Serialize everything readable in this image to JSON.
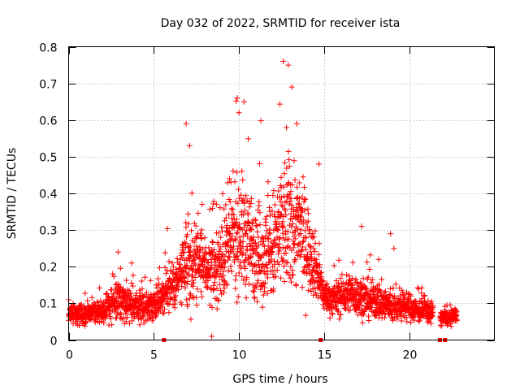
{
  "chart_data": {
    "type": "scatter",
    "title": "Day 032 of 2022, SRMTID for receiver ista",
    "xlabel": "GPS time / hours",
    "ylabel": "SRMTID / TECUs",
    "xlim": [
      0,
      25
    ],
    "ylim": [
      0,
      0.8
    ],
    "xticks": [
      0,
      5,
      10,
      15,
      20
    ],
    "yticks": [
      0,
      0.1,
      0.2,
      0.3,
      0.4,
      0.5,
      0.6,
      0.7,
      0.8
    ],
    "grid": true,
    "marker": "+",
    "color": "#ff0000",
    "series": [
      {
        "name": "SRMTID",
        "anchors": {
          "x": [
            0.0,
            1.0,
            2.0,
            2.5,
            3.0,
            3.5,
            4.0,
            4.5,
            5.0,
            5.5,
            6.0,
            6.5,
            7.0,
            7.5,
            8.0,
            8.5,
            9.0,
            9.5,
            10.0,
            10.5,
            11.0,
            11.5,
            12.0,
            12.5,
            13.0,
            13.5,
            14.0,
            14.5,
            15.0,
            15.5,
            16.0,
            16.5,
            17.0,
            17.5,
            18.0,
            18.5,
            19.0,
            19.5,
            20.0,
            20.5,
            21.0,
            21.5,
            22.0,
            22.5,
            22.8
          ],
          "median": [
            0.07,
            0.07,
            0.08,
            0.1,
            0.11,
            0.1,
            0.09,
            0.09,
            0.1,
            0.12,
            0.15,
            0.17,
            0.19,
            0.22,
            0.2,
            0.19,
            0.22,
            0.27,
            0.3,
            0.27,
            0.25,
            0.23,
            0.25,
            0.3,
            0.32,
            0.3,
            0.26,
            0.2,
            0.12,
            0.11,
            0.12,
            0.13,
            0.12,
            0.11,
            0.11,
            0.1,
            0.09,
            0.09,
            0.09,
            0.08,
            0.08,
            0.07,
            0.06,
            0.06,
            0.07
          ],
          "spread": [
            0.02,
            0.025,
            0.03,
            0.05,
            0.05,
            0.04,
            0.04,
            0.04,
            0.04,
            0.05,
            0.06,
            0.08,
            0.12,
            0.1,
            0.08,
            0.08,
            0.11,
            0.13,
            0.15,
            0.14,
            0.13,
            0.12,
            0.15,
            0.18,
            0.18,
            0.15,
            0.12,
            0.08,
            0.04,
            0.04,
            0.05,
            0.05,
            0.05,
            0.05,
            0.05,
            0.05,
            0.04,
            0.035,
            0.035,
            0.03,
            0.03,
            0.025,
            0.02,
            0.02,
            0.02
          ]
        },
        "peaks": [
          {
            "x": 2.9,
            "y": 0.24
          },
          {
            "x": 3.7,
            "y": 0.21
          },
          {
            "x": 6.9,
            "y": 0.59
          },
          {
            "x": 7.1,
            "y": 0.53
          },
          {
            "x": 9.9,
            "y": 0.66
          },
          {
            "x": 10.0,
            "y": 0.62
          },
          {
            "x": 10.3,
            "y": 0.65
          },
          {
            "x": 12.6,
            "y": 0.76
          },
          {
            "x": 12.9,
            "y": 0.75
          },
          {
            "x": 13.1,
            "y": 0.69
          },
          {
            "x": 13.4,
            "y": 0.59
          },
          {
            "x": 14.7,
            "y": 0.48
          },
          {
            "x": 17.2,
            "y": 0.31
          },
          {
            "x": 18.2,
            "y": 0.22
          },
          {
            "x": 18.9,
            "y": 0.29
          },
          {
            "x": 19.1,
            "y": 0.25
          },
          {
            "x": 8.4,
            "y": 0.01
          }
        ],
        "zero_points": [
          {
            "x": 5.6,
            "y": 0.0
          },
          {
            "x": 14.8,
            "y": 0.0
          },
          {
            "x": 21.8,
            "y": 0.0
          },
          {
            "x": 22.1,
            "y": 0.0
          }
        ],
        "gaps": [
          [
            21.4,
            21.8
          ]
        ],
        "x_range": [
          0.0,
          22.8
        ],
        "n_points": 2600
      }
    ]
  }
}
